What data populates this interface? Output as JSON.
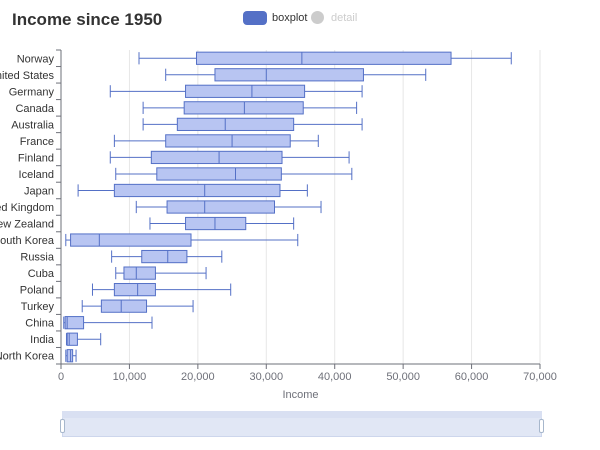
{
  "chart_data": {
    "type": "boxplot",
    "title": "Income since 1950",
    "xlabel": "Income",
    "xlim": [
      0,
      70000
    ],
    "x_ticks": [
      "0",
      "10,000",
      "20,000",
      "30,000",
      "40,000",
      "50,000",
      "60,000",
      "70,000"
    ],
    "grid": true,
    "legend": {
      "placement": "top-center",
      "items": [
        "boxplot",
        "detail"
      ]
    },
    "colors": {
      "box_fill": "#b8c5f2",
      "box_stroke": "#5470c6",
      "legend_active": "#5470c6",
      "legend_inactive": "#cccccc"
    },
    "categories": [
      "Norway",
      "United States",
      "Germany",
      "Canada",
      "Australia",
      "France",
      "Finland",
      "Iceland",
      "Japan",
      "United Kingdom",
      "New Zealand",
      "South Korea",
      "Russia",
      "Cuba",
      "Poland",
      "Turkey",
      "China",
      "India",
      "North Korea"
    ],
    "series": [
      {
        "name": "boxplot",
        "data": [
          {
            "min": 11400,
            "q1": 19800,
            "median": 35200,
            "q3": 57000,
            "max": 65800
          },
          {
            "min": 15300,
            "q1": 22500,
            "median": 30000,
            "q3": 44200,
            "max": 53300
          },
          {
            "min": 7200,
            "q1": 18200,
            "median": 27900,
            "q3": 35600,
            "max": 44000
          },
          {
            "min": 12000,
            "q1": 18000,
            "median": 26800,
            "q3": 35400,
            "max": 43200
          },
          {
            "min": 12000,
            "q1": 17000,
            "median": 24000,
            "q3": 34000,
            "max": 44000
          },
          {
            "min": 7800,
            "q1": 15300,
            "median": 25000,
            "q3": 33500,
            "max": 37600
          },
          {
            "min": 7200,
            "q1": 13200,
            "median": 23100,
            "q3": 32300,
            "max": 42100
          },
          {
            "min": 8000,
            "q1": 14000,
            "median": 25500,
            "q3": 32200,
            "max": 42500
          },
          {
            "min": 2500,
            "q1": 7800,
            "median": 21000,
            "q3": 32000,
            "max": 36000
          },
          {
            "min": 11000,
            "q1": 15500,
            "median": 21000,
            "q3": 31200,
            "max": 38000
          },
          {
            "min": 13000,
            "q1": 18200,
            "median": 22500,
            "q3": 27000,
            "max": 34000
          },
          {
            "min": 700,
            "q1": 1400,
            "median": 5600,
            "q3": 19000,
            "max": 34600
          },
          {
            "min": 7400,
            "q1": 11800,
            "median": 15600,
            "q3": 18400,
            "max": 23500
          },
          {
            "min": 8000,
            "q1": 9200,
            "median": 11000,
            "q3": 13800,
            "max": 21200
          },
          {
            "min": 4600,
            "q1": 7800,
            "median": 11200,
            "q3": 13800,
            "max": 24800
          },
          {
            "min": 3100,
            "q1": 5900,
            "median": 8800,
            "q3": 12500,
            "max": 19300
          },
          {
            "min": 400,
            "q1": 600,
            "median": 900,
            "q3": 3300,
            "max": 13300
          },
          {
            "min": 800,
            "q1": 900,
            "median": 1200,
            "q3": 2400,
            "max": 5800
          },
          {
            "min": 700,
            "q1": 900,
            "median": 1400,
            "q3": 1700,
            "max": 2200
          }
        ]
      }
    ]
  },
  "dataZoom": {
    "start_pct": 0,
    "end_pct": 100
  }
}
